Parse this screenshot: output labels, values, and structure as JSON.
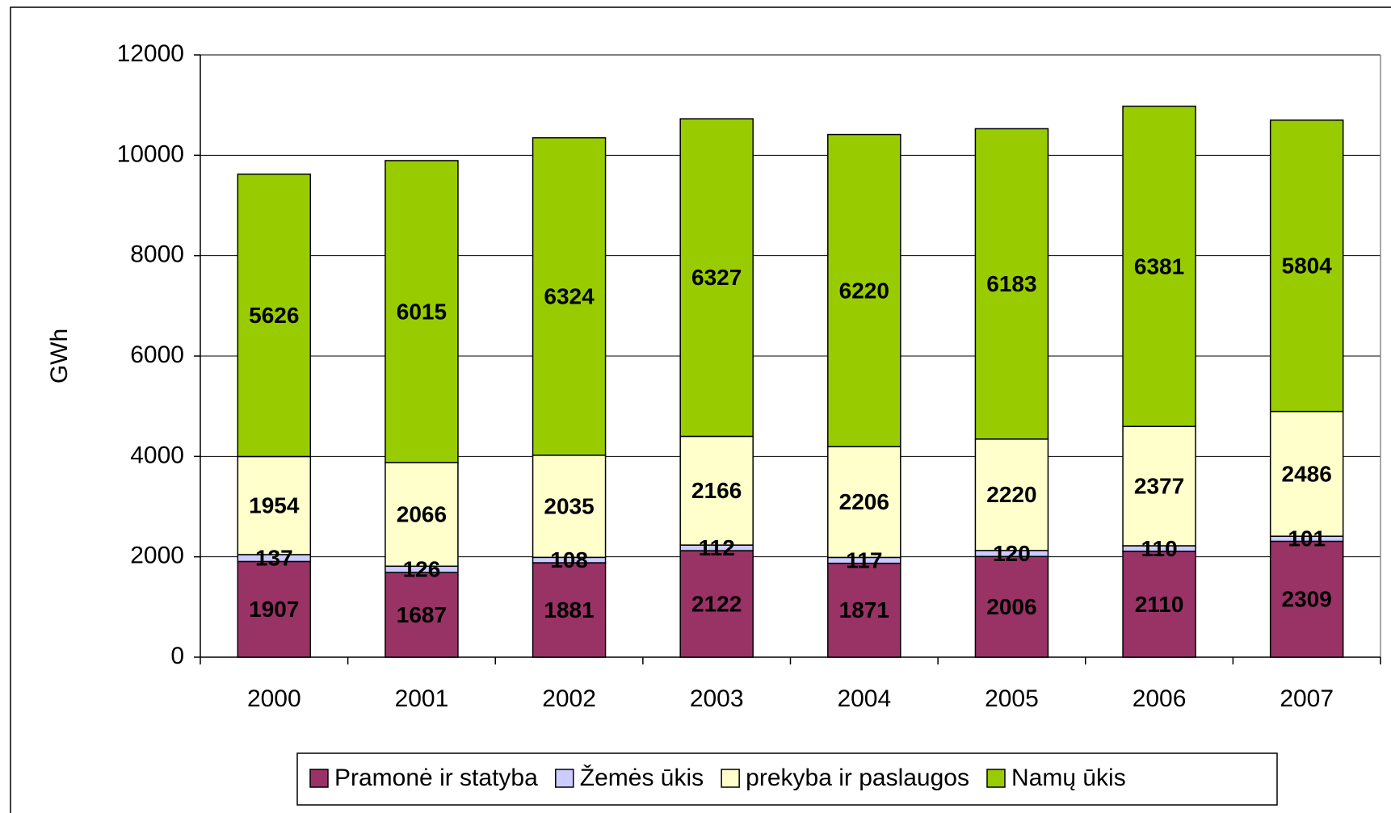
{
  "chart_data": {
    "type": "stacked_bar",
    "y_label": "GWh",
    "categories": [
      "2000",
      "2001",
      "2002",
      "2003",
      "2004",
      "2005",
      "2006",
      "2007"
    ],
    "series": [
      {
        "name": "Pramonė ir statyba",
        "color": "#993366",
        "values": [
          1907,
          1687,
          1881,
          2122,
          1871,
          2006,
          2110,
          2309
        ]
      },
      {
        "name": "Žemės ūkis",
        "color": "#ccccff",
        "values": [
          137,
          126,
          108,
          112,
          117,
          120,
          110,
          101
        ]
      },
      {
        "name": "prekyba ir paslaugos",
        "color": "#ffffcc",
        "values": [
          1954,
          2066,
          2035,
          2166,
          2206,
          2220,
          2377,
          2486
        ]
      },
      {
        "name": "Namų ūkis",
        "color": "#99cc00",
        "values": [
          5626,
          6015,
          6324,
          6327,
          6220,
          6183,
          6381,
          5804
        ]
      }
    ],
    "ylim": [
      0,
      12000
    ],
    "yticks": [
      0,
      2000,
      4000,
      6000,
      8000,
      10000,
      12000
    ],
    "grid": true,
    "legend": "bottom"
  }
}
